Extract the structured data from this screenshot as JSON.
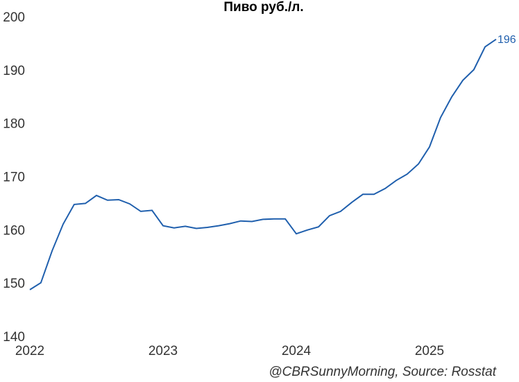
{
  "chart_data": {
    "type": "line",
    "title": "Пиво руб./л.",
    "annotation": "@CBRSunnyMorning, Source: Rosstat",
    "x": [
      2022,
      2022.083,
      2022.167,
      2022.25,
      2022.333,
      2022.417,
      2022.5,
      2022.583,
      2022.667,
      2022.75,
      2022.833,
      2022.917,
      2023,
      2023.083,
      2023.167,
      2023.25,
      2023.333,
      2023.417,
      2023.5,
      2023.583,
      2023.667,
      2023.75,
      2023.833,
      2023.917,
      2024,
      2024.083,
      2024.167,
      2024.25,
      2024.333,
      2024.417,
      2024.5,
      2024.583,
      2024.667,
      2024.75,
      2024.833,
      2024.917,
      2025,
      2025.083,
      2025.167,
      2025.25,
      2025.333,
      2025.417,
      2025.5
    ],
    "series": [
      {
        "name": "Пиво руб./л.",
        "color": "#1f5fad",
        "values": [
          149.0,
          150.3,
          156.3,
          161.3,
          165.0,
          165.2,
          166.7,
          165.8,
          165.9,
          165.1,
          163.7,
          163.9,
          161.0,
          160.6,
          160.9,
          160.5,
          160.7,
          161.0,
          161.4,
          161.9,
          161.8,
          162.2,
          162.3,
          162.3,
          159.5,
          160.2,
          160.8,
          162.9,
          163.7,
          165.4,
          166.9,
          166.9,
          168.0,
          169.5,
          170.7,
          172.6,
          175.8,
          181.3,
          185.2,
          188.3,
          190.3,
          194.6,
          196
        ]
      }
    ],
    "xlim": [
      2022,
      2025.5
    ],
    "xticks": [
      2022,
      2023,
      2024,
      2025
    ],
    "ylim": [
      140,
      200
    ],
    "yticks": [
      140,
      150,
      160,
      170,
      180,
      190,
      200
    ],
    "grid": false
  }
}
